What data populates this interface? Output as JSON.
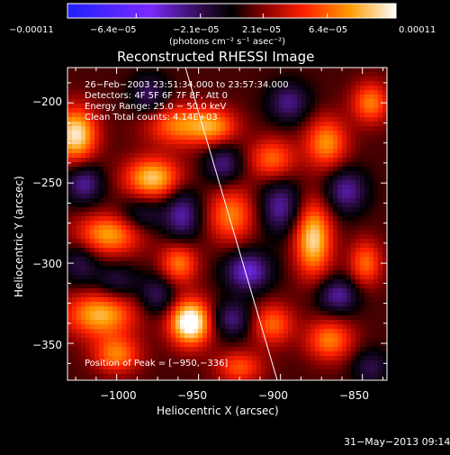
{
  "chart_data": {
    "type": "heatmap",
    "title": "Reconstructed RHESSI Image",
    "xlabel": "Heliocentric X (arcsec)",
    "ylabel": "Heliocentric Y (arcsec)",
    "xlim": [
      -1030,
      -835
    ],
    "ylim": [
      -373,
      -178
    ],
    "x_ticks": [
      -1000,
      -950,
      -900,
      -850
    ],
    "x_tick_labels": [
      "−1000",
      "−950",
      "−900",
      "−850"
    ],
    "y_ticks": [
      -200,
      -250,
      -300,
      -350
    ],
    "y_tick_labels": [
      "−200",
      "−250",
      "−300",
      "−350"
    ],
    "colorbar": {
      "min": -0.00011,
      "max": 0.00011,
      "ticks": [
        -0.00011,
        -6.4e-05,
        -2.1e-05,
        2.1e-05,
        6.4e-05,
        0.00011
      ],
      "tick_labels": [
        "−0.00011",
        "−6.4e−05",
        "−2.1e−05",
        "2.1e−05",
        "6.4e−05",
        "0.00011"
      ],
      "units": "(photons cm⁻² s⁻¹ asec⁻²)"
    },
    "annotations": [
      "26−Feb−2003 23:51:34.000 to 23:57:34.000",
      "Detectors: 4F 5F 6F 7F 8F, Att 0",
      "Energy Range: 25.0 − 50.0 keV",
      "Clean     Total counts: 4.14E+03",
      "Position of Peak = [−950,−336]"
    ],
    "peak_position": [
      -950,
      -336
    ],
    "limb_line": {
      "x1": -958,
      "y1": -178,
      "x2": -902,
      "y2": -373
    },
    "emission_blobs": [
      {
        "x": -1025,
        "y": -220,
        "sx": 9,
        "sy": 12,
        "v": 0.85
      },
      {
        "x": -962,
        "y": -214,
        "sx": 14,
        "sy": 9,
        "v": 0.55
      },
      {
        "x": -978,
        "y": -247,
        "sx": 12,
        "sy": 9,
        "v": 0.75
      },
      {
        "x": -1005,
        "y": -282,
        "sx": 14,
        "sy": 9,
        "v": 0.65
      },
      {
        "x": -1010,
        "y": -332,
        "sx": 15,
        "sy": 10,
        "v": 0.7
      },
      {
        "x": -1000,
        "y": -357,
        "sx": 10,
        "sy": 8,
        "v": 0.55
      },
      {
        "x": -955,
        "y": -337,
        "sx": 9,
        "sy": 10,
        "v": 1.05
      },
      {
        "x": -962,
        "y": -300,
        "sx": 8,
        "sy": 9,
        "v": 0.55
      },
      {
        "x": -940,
        "y": -215,
        "sx": 10,
        "sy": 8,
        "v": 0.5
      },
      {
        "x": -930,
        "y": -270,
        "sx": 10,
        "sy": 12,
        "v": 0.55
      },
      {
        "x": -905,
        "y": -235,
        "sx": 10,
        "sy": 9,
        "v": 0.5
      },
      {
        "x": -905,
        "y": -338,
        "sx": 9,
        "sy": 9,
        "v": 0.5
      },
      {
        "x": -880,
        "y": -285,
        "sx": 8,
        "sy": 16,
        "v": 0.8
      },
      {
        "x": -872,
        "y": -225,
        "sx": 9,
        "sy": 11,
        "v": 0.6
      },
      {
        "x": -870,
        "y": -348,
        "sx": 10,
        "sy": 9,
        "v": 0.55
      },
      {
        "x": -848,
        "y": -300,
        "sx": 7,
        "sy": 10,
        "v": 0.5
      },
      {
        "x": -845,
        "y": -200,
        "sx": 8,
        "sy": 9,
        "v": 0.55
      },
      {
        "x": -925,
        "y": -365,
        "sx": 10,
        "sy": 7,
        "v": 0.45
      },
      {
        "x": -1020,
        "y": -250,
        "sx": 8,
        "sy": 9,
        "v": -0.45
      },
      {
        "x": -985,
        "y": -270,
        "sx": 10,
        "sy": 8,
        "v": -0.3
      },
      {
        "x": -960,
        "y": -270,
        "sx": 8,
        "sy": 12,
        "v": -0.45
      },
      {
        "x": -935,
        "y": -238,
        "sx": 8,
        "sy": 9,
        "v": -0.4
      },
      {
        "x": -920,
        "y": -305,
        "sx": 10,
        "sy": 9,
        "v": -0.55
      },
      {
        "x": -930,
        "y": -335,
        "sx": 9,
        "sy": 8,
        "v": -0.4
      },
      {
        "x": -895,
        "y": -200,
        "sx": 9,
        "sy": 9,
        "v": -0.4
      },
      {
        "x": -900,
        "y": -265,
        "sx": 9,
        "sy": 12,
        "v": -0.45
      },
      {
        "x": -860,
        "y": -255,
        "sx": 9,
        "sy": 10,
        "v": -0.45
      },
      {
        "x": -865,
        "y": -320,
        "sx": 9,
        "sy": 8,
        "v": -0.45
      },
      {
        "x": -975,
        "y": -320,
        "sx": 8,
        "sy": 9,
        "v": -0.35
      },
      {
        "x": -1000,
        "y": -312,
        "sx": 9,
        "sy": 8,
        "v": -0.3
      },
      {
        "x": -980,
        "y": -195,
        "sx": 8,
        "sy": 9,
        "v": -0.35
      },
      {
        "x": -1022,
        "y": -300,
        "sx": 8,
        "sy": 10,
        "v": -0.3
      },
      {
        "x": -845,
        "y": -365,
        "sx": 8,
        "sy": 8,
        "v": -0.3
      }
    ],
    "grid": false
  },
  "footer": {
    "date": "31−May−2013 09:14"
  }
}
